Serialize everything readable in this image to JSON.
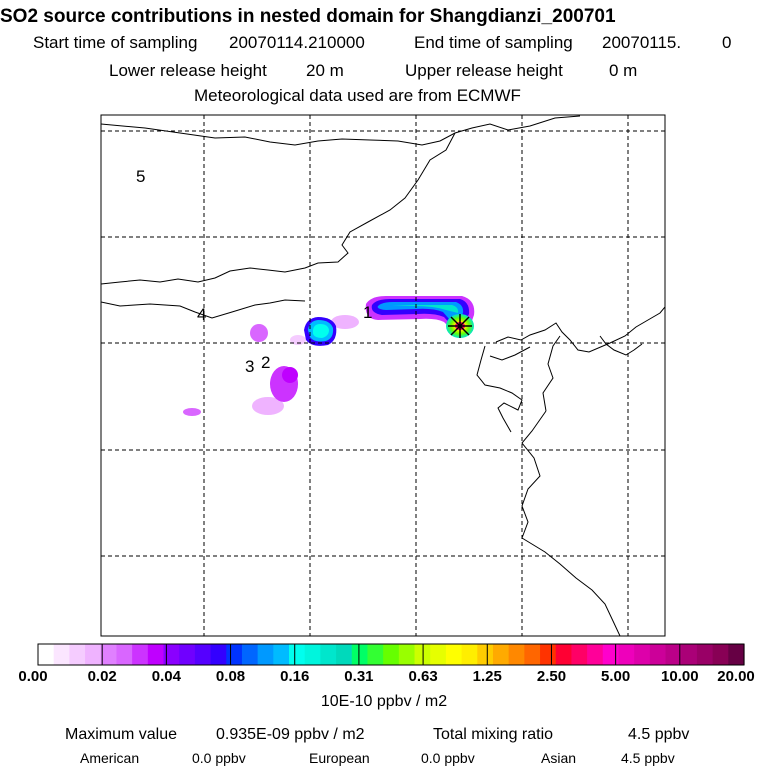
{
  "header": {
    "title": "SO2 source contributions in nested domain for Shangdianzi_200701",
    "start_label": "Start time of sampling",
    "start_value": "20070114.210000",
    "end_label": "End time of sampling",
    "end_value": "20070115.",
    "end_hour": "0",
    "lower_label": "Lower release height",
    "lower_value": "20 m",
    "upper_label": "Upper release height",
    "upper_value": "0 m",
    "met": "Meteorological data used are from ECMWF"
  },
  "map": {
    "station_markers": [
      "1",
      "2",
      "3",
      "4",
      "5"
    ]
  },
  "colorbar": {
    "tick_labels": [
      "0.00",
      "0.02",
      "0.04",
      "0.08",
      "0.16",
      "0.31",
      "0.63",
      "1.25",
      "2.50",
      "5.00",
      "10.00",
      "20.00"
    ],
    "colors": [
      "#ffffff",
      "#fbe6ff",
      "#f5ccff",
      "#efb3ff",
      "#e080ff",
      "#d966ff",
      "#cc33ff",
      "#bf00ff",
      "#8a00ff",
      "#7000ff",
      "#5500ff",
      "#3300ff",
      "#0033ff",
      "#0066ff",
      "#0099ff",
      "#00bbff",
      "#00ffee",
      "#00f5dd",
      "#00e6cc",
      "#00d9bb",
      "#00ff66",
      "#33ff33",
      "#66ff00",
      "#99ff00",
      "#ccff00",
      "#e6ff00",
      "#ffff00",
      "#ffee00",
      "#ffcc00",
      "#ffaa00",
      "#ff8800",
      "#ff6600",
      "#ff3300",
      "#ff0033",
      "#ff0066",
      "#ff0099",
      "#ff00cc",
      "#ee00bb",
      "#dd00aa",
      "#cc0099",
      "#bb0088",
      "#aa0077",
      "#990066",
      "#880055",
      "#660044"
    ],
    "unit_label": "10E-10 ppbv / m2"
  },
  "footer": {
    "max_label": "Maximum value",
    "max_value": "0.935E-09 ppbv / m2",
    "total_label": "Total mixing ratio",
    "total_value": "4.5 ppbv",
    "american_label": "American",
    "american_value": "0.0 ppbv",
    "european_label": "European",
    "european_value": "0.0 ppbv",
    "asian_label": "Asian",
    "asian_value": "4.5 ppbv"
  }
}
